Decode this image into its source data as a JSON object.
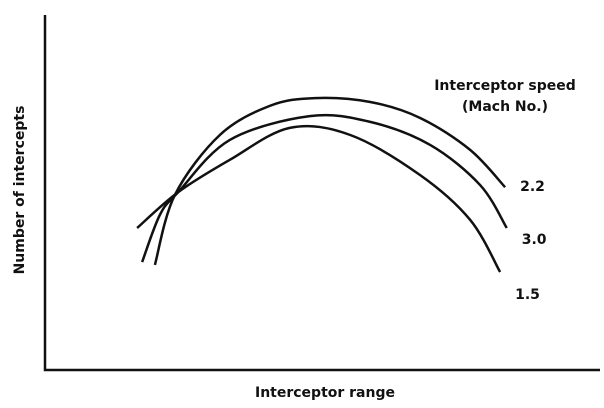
{
  "chart_data": {
    "type": "line",
    "xlabel": "Interceptor range",
    "ylabel": "Number of intercepts",
    "legend_title": [
      "Interceptor speed",
      "(Mach No.)"
    ],
    "xlim": [
      0,
      100
    ],
    "ylim": [
      0,
      100
    ],
    "grid": false,
    "color": "#111111",
    "series": [
      {
        "name": "2.2",
        "x": [
          19.8,
          23.4,
          31.5,
          40.5,
          48.6,
          58.6,
          67.6,
          76.6,
          82.9
        ],
        "values": [
          29.6,
          49.3,
          66.2,
          74.4,
          76.6,
          75.5,
          71.0,
          62.0,
          51.5
        ]
      },
      {
        "name": "3.0",
        "x": [
          17.5,
          20.7,
          24.0,
          33.3,
          47.7,
          58.6,
          69.4,
          78.4,
          83.2
        ],
        "values": [
          30.4,
          43.7,
          50.1,
          64.8,
          71.5,
          69.9,
          63.4,
          52.1,
          40.0
        ]
      },
      {
        "name": "1.5",
        "x": [
          16.6,
          24.0,
          33.3,
          44.1,
          55.0,
          67.6,
          76.6,
          82.0
        ],
        "values": [
          40.0,
          50.1,
          59.2,
          68.2,
          66.2,
          54.9,
          42.3,
          27.6
        ]
      }
    ]
  }
}
